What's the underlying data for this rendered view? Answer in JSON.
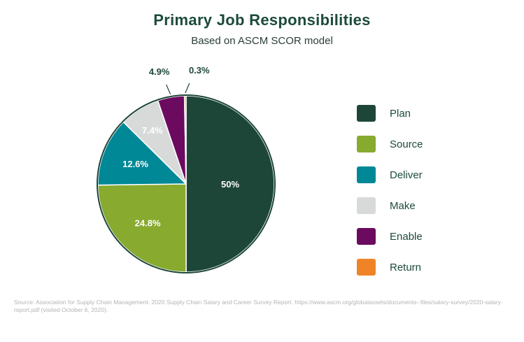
{
  "chart_data": {
    "type": "pie",
    "title": "Primary Job Responsibilities",
    "subtitle": "Based on ASCM SCOR model",
    "slices": [
      {
        "label": "Plan",
        "value": 50,
        "display": "50%",
        "color": "#1d4639"
      },
      {
        "label": "Source",
        "value": 24.8,
        "display": "24.8%",
        "color": "#87aa2f"
      },
      {
        "label": "Deliver",
        "value": 12.6,
        "display": "12.6%",
        "color": "#008896"
      },
      {
        "label": "Make",
        "value": 7.4,
        "display": "7.4%",
        "color": "#d8dada"
      },
      {
        "label": "Enable",
        "value": 4.9,
        "display": "4.9%",
        "color": "#6b0a5f"
      },
      {
        "label": "Return",
        "value": 0.3,
        "display": "0.3%",
        "color": "#ef8427"
      }
    ],
    "legend_position": "right",
    "outline_color": "#1d4639"
  },
  "source_note": "Source: Association for Supply Chain Management. 2020 Supply Chain Salary and Career Survey Report. https://www.ascm.org/globalassets/documents--files/salary-survey/2020-salary-report.pdf (visited October 6, 2020)."
}
